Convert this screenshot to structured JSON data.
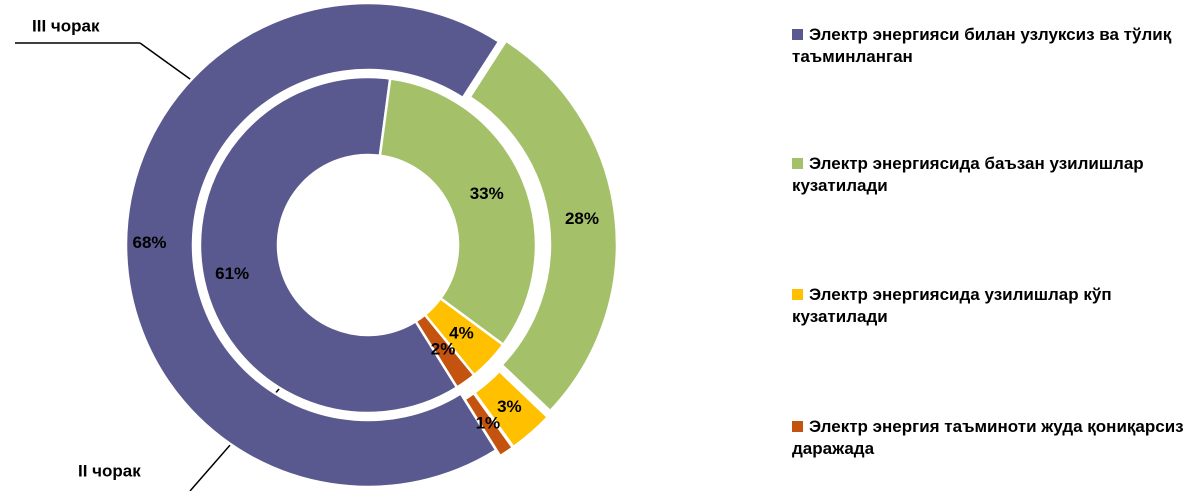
{
  "chart_data": {
    "type": "donut",
    "categories": [
      "Электр энергияси билан узлуксиз ва тўлиқ таъминланган",
      "Электр энергиясида баъзан узилишлар кузатилади",
      "Электр энергиясида узилишлар кўп кузатилади",
      "Электр энергия таъминоти жуда қониқарсиз даражада"
    ],
    "colors": [
      "#59598f",
      "#a4c16a",
      "#ffc000",
      "#c4530f"
    ],
    "series": [
      {
        "name": "II чорак",
        "values": [
          61,
          33,
          4,
          2
        ],
        "value_labels": [
          "61%",
          "33%",
          "4%",
          "2%"
        ]
      },
      {
        "name": "III чорак",
        "values": [
          68,
          28,
          3,
          1
        ],
        "value_labels": [
          "68%",
          "28%",
          "3%",
          "1%"
        ]
      }
    ],
    "legend": "right"
  }
}
